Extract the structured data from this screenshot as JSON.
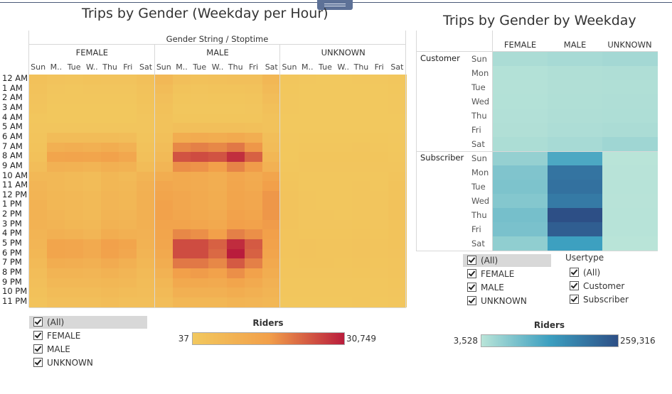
{
  "chart_data": [
    {
      "type": "heatmap",
      "title": "Trips by Gender (Weekday per Hour)",
      "column_header": "Gender String / Stoptime",
      "groups": [
        "FEMALE",
        "MALE",
        "UNKNOWN"
      ],
      "days": [
        "Sun",
        "M..",
        "Tue",
        "W..",
        "Thu",
        "Fri",
        "Sat"
      ],
      "rows": [
        "12 AM",
        "1 AM",
        "2 AM",
        "3 AM",
        "4 AM",
        "5 AM",
        "6 AM",
        "7 AM",
        "8 AM",
        "9 AM",
        "10 AM",
        "11 AM",
        "12 PM",
        "1 PM",
        "2 PM",
        "3 PM",
        "4 PM",
        "5 PM",
        "6 PM",
        "7 PM",
        "8 PM",
        "9 PM",
        "10 PM",
        "11 PM"
      ],
      "values": {
        "FEMALE": [
          [
            1500,
            900,
            800,
            1000,
            900,
            900,
            1700
          ],
          [
            1200,
            500,
            400,
            500,
            500,
            500,
            1300
          ],
          [
            900,
            300,
            300,
            300,
            300,
            300,
            1000
          ],
          [
            700,
            200,
            200,
            200,
            200,
            200,
            800
          ],
          [
            400,
            200,
            200,
            200,
            200,
            200,
            500
          ],
          [
            500,
            500,
            500,
            500,
            500,
            500,
            500
          ],
          [
            700,
            3000,
            3000,
            3000,
            3000,
            2500,
            800
          ],
          [
            1000,
            7000,
            7500,
            7000,
            8000,
            6500,
            1200
          ],
          [
            1500,
            11000,
            11500,
            11000,
            12000,
            10000,
            1800
          ],
          [
            2500,
            6500,
            6000,
            5500,
            7000,
            6000,
            3000
          ],
          [
            4000,
            4000,
            3500,
            3000,
            4500,
            3500,
            5500
          ],
          [
            5000,
            4000,
            3500,
            3000,
            4500,
            4000,
            6500
          ],
          [
            5500,
            4500,
            4000,
            3500,
            5000,
            4500,
            7000
          ],
          [
            6000,
            4500,
            4000,
            3500,
            5000,
            4500,
            7000
          ],
          [
            6000,
            5000,
            4000,
            3500,
            5500,
            5000,
            7000
          ],
          [
            6000,
            5500,
            4500,
            4000,
            6000,
            5500,
            7000
          ],
          [
            5500,
            7000,
            6000,
            5000,
            8000,
            7000,
            6500
          ],
          [
            5000,
            11000,
            10500,
            9000,
            12500,
            11000,
            6000
          ],
          [
            4500,
            11000,
            10500,
            9000,
            12000,
            10000,
            5500
          ],
          [
            3500,
            8000,
            7500,
            7000,
            8500,
            7000,
            4500
          ],
          [
            2500,
            5500,
            5500,
            5000,
            6000,
            5000,
            3500
          ],
          [
            2000,
            4000,
            4000,
            4000,
            4500,
            4000,
            3000
          ],
          [
            1500,
            3000,
            3000,
            3000,
            3500,
            3000,
            2500
          ],
          [
            1000,
            2000,
            2000,
            2000,
            2500,
            2000,
            2000
          ]
        ],
        "MALE": [
          [
            4000,
            2000,
            1500,
            1800,
            2000,
            2000,
            4500
          ],
          [
            3000,
            1000,
            800,
            1000,
            1000,
            1200,
            3500
          ],
          [
            2000,
            600,
            500,
            600,
            600,
            700,
            2500
          ],
          [
            1500,
            400,
            400,
            400,
            400,
            500,
            1800
          ],
          [
            1200,
            600,
            600,
            600,
            600,
            600,
            1200
          ],
          [
            1200,
            2000,
            2000,
            2000,
            2000,
            1800,
            1200
          ],
          [
            1800,
            8000,
            8500,
            8000,
            9000,
            7500,
            2200
          ],
          [
            2500,
            16000,
            17000,
            16000,
            18000,
            14000,
            3000
          ],
          [
            3500,
            23000,
            24000,
            23000,
            28000,
            21000,
            4500
          ],
          [
            5000,
            15000,
            14500,
            13000,
            16500,
            13500,
            6500
          ],
          [
            8000,
            9000,
            8500,
            7500,
            10000,
            8500,
            11000
          ],
          [
            10000,
            9000,
            8500,
            7500,
            10500,
            9000,
            13000
          ],
          [
            11000,
            10000,
            9000,
            8000,
            11000,
            10000,
            14000
          ],
          [
            12000,
            10000,
            9000,
            8000,
            11000,
            10000,
            14000
          ],
          [
            12000,
            10500,
            9500,
            8500,
            12000,
            11000,
            14000
          ],
          [
            11500,
            11500,
            10500,
            9500,
            13000,
            12000,
            13500
          ],
          [
            11000,
            16000,
            15000,
            13000,
            17000,
            15000,
            13000
          ],
          [
            10500,
            24000,
            24000,
            21000,
            28500,
            22000,
            12000
          ],
          [
            9500,
            24000,
            24000,
            20000,
            30749,
            21000,
            11000
          ],
          [
            8000,
            18000,
            18000,
            16000,
            22000,
            17000,
            9500
          ],
          [
            6000,
            13000,
            13500,
            12000,
            15000,
            12000,
            8000
          ],
          [
            4500,
            9500,
            9500,
            9000,
            11000,
            9000,
            6500
          ],
          [
            3500,
            7000,
            7000,
            7000,
            8000,
            7000,
            5500
          ],
          [
            2500,
            4500,
            4500,
            4500,
            5500,
            5000,
            4500
          ]
        ],
        "UNKNOWN": [
          [
            300,
            100,
            80,
            90,
            100,
            100,
            300
          ],
          [
            200,
            60,
            50,
            60,
            60,
            70,
            220
          ],
          [
            150,
            40,
            37,
            40,
            40,
            50,
            160
          ],
          [
            120,
            37,
            37,
            37,
            37,
            40,
            120
          ],
          [
            90,
            37,
            37,
            37,
            37,
            37,
            90
          ],
          [
            90,
            60,
            60,
            60,
            60,
            60,
            90
          ],
          [
            120,
            200,
            200,
            200,
            200,
            180,
            130
          ],
          [
            180,
            400,
            420,
            400,
            450,
            380,
            200
          ],
          [
            250,
            600,
            620,
            600,
            650,
            550,
            300
          ],
          [
            400,
            500,
            480,
            450,
            500,
            450,
            500
          ],
          [
            600,
            400,
            380,
            350,
            420,
            400,
            800
          ],
          [
            800,
            420,
            400,
            380,
            450,
            420,
            1000
          ],
          [
            900,
            450,
            420,
            400,
            480,
            450,
            1100
          ],
          [
            950,
            460,
            430,
            400,
            500,
            460,
            1150
          ],
          [
            950,
            480,
            450,
            420,
            520,
            480,
            1150
          ],
          [
            900,
            520,
            480,
            450,
            560,
            520,
            1100
          ],
          [
            850,
            650,
            600,
            550,
            700,
            620,
            1050
          ],
          [
            800,
            900,
            850,
            800,
            950,
            850,
            1000
          ],
          [
            750,
            900,
            850,
            800,
            950,
            850,
            950
          ],
          [
            650,
            700,
            680,
            650,
            750,
            650,
            850
          ],
          [
            500,
            500,
            500,
            480,
            550,
            480,
            700
          ],
          [
            400,
            400,
            400,
            380,
            420,
            400,
            550
          ],
          [
            320,
            320,
            320,
            320,
            350,
            320,
            450
          ],
          [
            250,
            220,
            220,
            230,
            260,
            240,
            400
          ]
        ]
      },
      "color_scale": {
        "title": "Riders",
        "min": 37,
        "max": 30749,
        "min_label": "37",
        "max_label": "30,749",
        "low_color": "#f2c85e",
        "high_color": "#b91c3c"
      },
      "filter": {
        "items": [
          "(All)",
          "FEMALE",
          "MALE",
          "UNKNOWN"
        ]
      }
    },
    {
      "type": "heatmap",
      "title": "Trips by Gender by Weekday",
      "groups": [
        "FEMALE",
        "MALE",
        "UNKNOWN"
      ],
      "usertypes": [
        "Customer",
        "Subscriber"
      ],
      "days": [
        "Sun",
        "Mon",
        "Tue",
        "Wed",
        "Thu",
        "Fri",
        "Sat"
      ],
      "values": {
        "Customer": [
          [
            18000,
            22000,
            25000
          ],
          [
            10000,
            13000,
            14000
          ],
          [
            9000,
            12000,
            13000
          ],
          [
            9500,
            13000,
            14000
          ],
          [
            11000,
            14000,
            15000
          ],
          [
            12000,
            16000,
            18000
          ],
          [
            17000,
            22000,
            30000
          ]
        ],
        "Subscriber": [
          [
            40000,
            115000,
            3528
          ],
          [
            62000,
            200000,
            5000
          ],
          [
            65000,
            205000,
            5200
          ],
          [
            58000,
            190000,
            5000
          ],
          [
            72000,
            259316,
            5800
          ],
          [
            68000,
            235000,
            5500
          ],
          [
            45000,
            130000,
            4000
          ]
        ]
      },
      "color_scale": {
        "title": "Riders",
        "min": 3528,
        "max": 259316,
        "min_label": "3,528",
        "max_label": "259,316",
        "low_color": "#b9e4d8",
        "high_color": "#2d4f86"
      },
      "filter": {
        "items": [
          "(All)",
          "FEMALE",
          "MALE",
          "UNKNOWN"
        ]
      },
      "usertype_filter": {
        "title": "Usertype",
        "items": [
          "(All)",
          "Customer",
          "Subscriber"
        ]
      }
    }
  ]
}
